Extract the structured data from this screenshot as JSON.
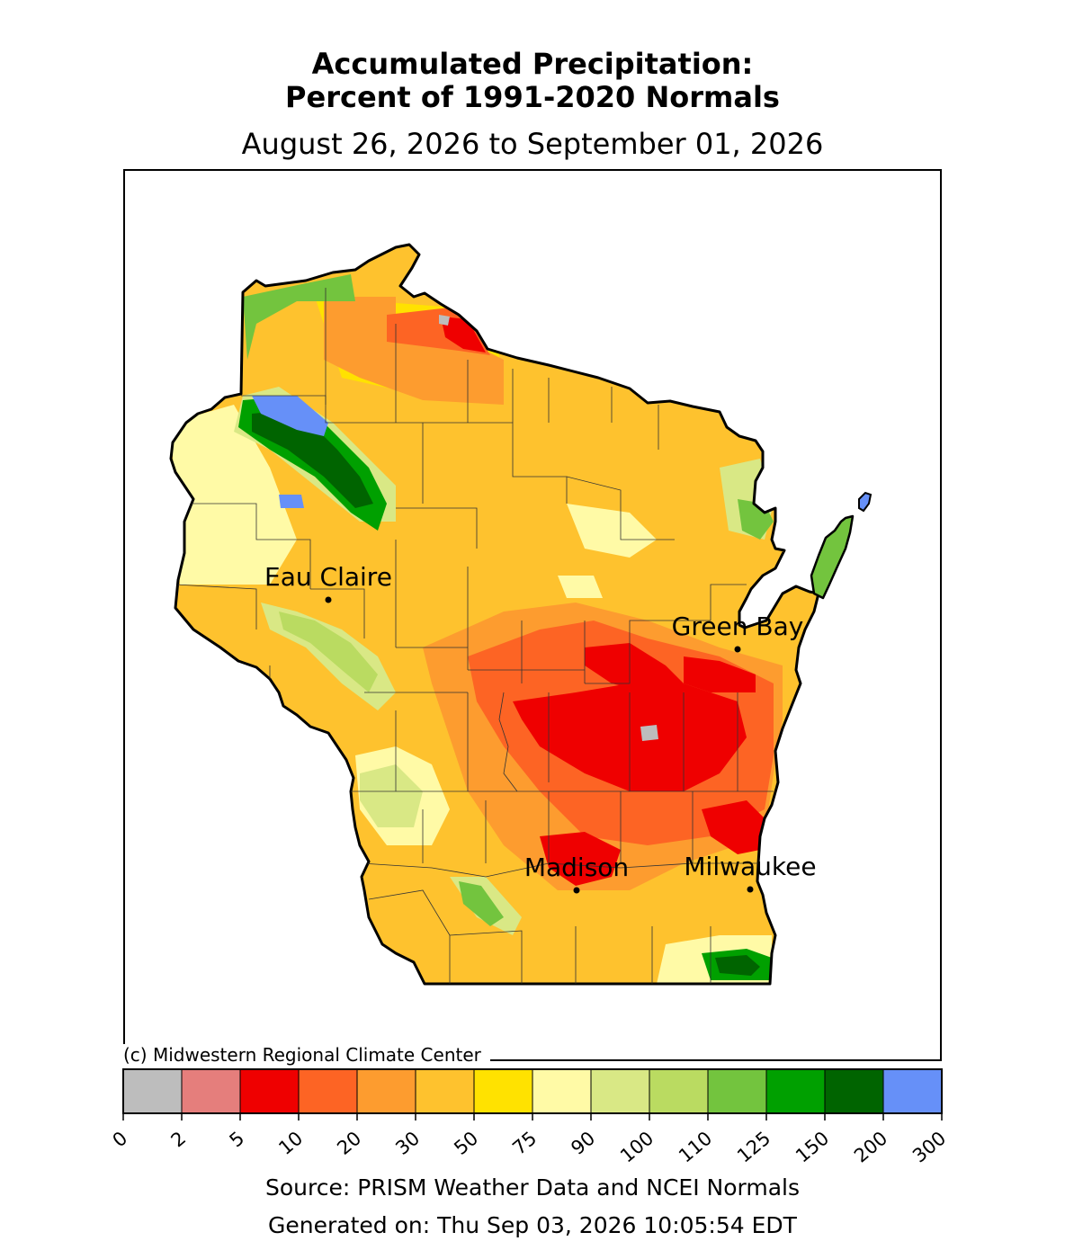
{
  "title_line1": "Accumulated Precipitation:",
  "title_line2": "Percent of 1991-2020 Normals",
  "date_range": "August 26, 2026 to September 01, 2026",
  "credit": "(c) Midwestern Regional Climate Center",
  "source": "Source: PRISM Weather Data and NCEI Normals",
  "generated": "Generated on: Thu Sep 03, 2026 10:05:54 EDT",
  "cities": [
    {
      "name": "Eau Claire"
    },
    {
      "name": "Green Bay"
    },
    {
      "name": "Madison"
    },
    {
      "name": "Milwaukee"
    }
  ],
  "legend": {
    "ticks": [
      "0",
      "2",
      "5",
      "10",
      "20",
      "30",
      "50",
      "75",
      "90",
      "100",
      "110",
      "125",
      "150",
      "200",
      "300"
    ],
    "colors": [
      "#bdbdbd",
      "#e57e7c",
      "#ef0000",
      "#fd6424",
      "#fd9c2f",
      "#fec22e",
      "#ffe200",
      "#fffaa6",
      "#d9e885",
      "#badb61",
      "#73c43e",
      "#00a000",
      "#006400",
      "#6690f8"
    ]
  },
  "colors": {
    "state_fill": "#fec22e",
    "outline": "#000000"
  }
}
